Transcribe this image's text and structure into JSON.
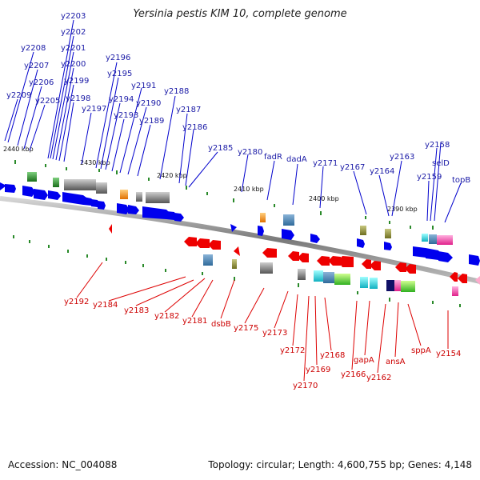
{
  "title": "Yersinia pestis KIM 10, complete genome",
  "footer": {
    "accession": "Accession: NC_004088",
    "summary": "Topology: circular; Length: 4,600,755 bp; Genes: 4,148"
  },
  "scale_labels": [
    "2440 kbp",
    "2430 kbp",
    "2420 kbp",
    "2410 kbp",
    "2400 kbp",
    "2390 kbp"
  ],
  "forward_genes": [
    "y2203",
    "y2202",
    "y2201",
    "y2200",
    "y2199",
    "y2198",
    "y2197",
    "y2208",
    "y2207",
    "y2206",
    "y2205",
    "y2209",
    "y2196",
    "y2195",
    "y2194",
    "y2193",
    "y2191",
    "y2190",
    "y2189",
    "y2188",
    "y2187",
    "y2186",
    "y2185",
    "y2180",
    "fadR",
    "dadA",
    "y2171",
    "y2167",
    "y2164",
    "y2163",
    "y2159",
    "y2158",
    "selD",
    "topB"
  ],
  "reverse_genes": [
    "y2192",
    "y2184",
    "y2183",
    "y2182",
    "y2181",
    "dsbB",
    "y2175",
    "y2173",
    "y2172",
    "y2169",
    "y2170",
    "y2168",
    "y2166",
    "gapA",
    "y2162",
    "ansA",
    "sppA",
    "y2154"
  ],
  "colors": {
    "forward_label": "#1a1aa6",
    "reverse_label": "#cc0000",
    "forward_arrow": "#0000ee",
    "reverse_arrow": "#ee0000",
    "backbone": "#8c8c8c",
    "tick": "#2a8a2a"
  }
}
